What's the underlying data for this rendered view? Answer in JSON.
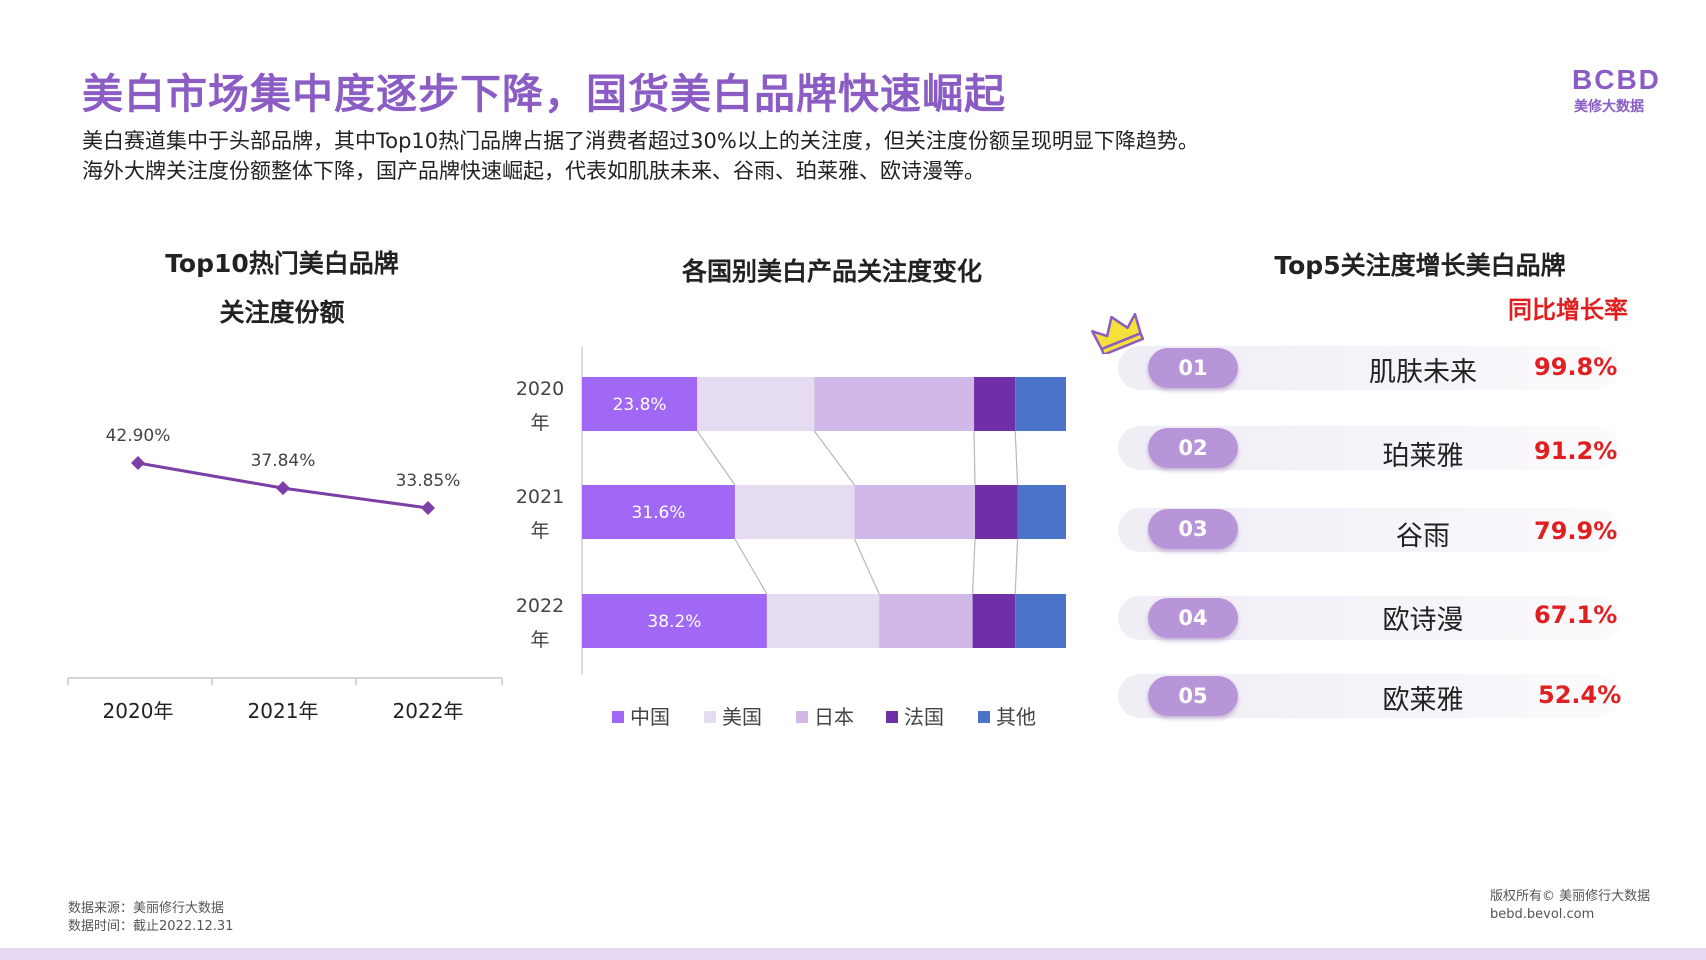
{
  "header": {
    "title": "美白市场集中度逐步下降，国货美白品牌快速崛起",
    "desc_line1": "美白赛道集中于头部品牌，其中Top10热门品牌占据了消费者超过30%以上的关注度，但关注度份额呈现明显下降趋势。",
    "desc_line2": "海外大牌关注度份额整体下降，国产品牌快速崛起，代表如肌肤未来、谷雨、珀莱雅、欧诗漫等。"
  },
  "logo": {
    "mark": "BCBD",
    "text": "美修大数据"
  },
  "left_chart": {
    "title_line1": "Top10热门美白品牌",
    "title_line2": "关注度份额"
  },
  "middle_chart": {
    "title": "各国别美白产品关注度变化"
  },
  "right_panel": {
    "title": "Top5关注度增长美白品牌",
    "growth_label": "同比增长率",
    "items": [
      {
        "rank": "01",
        "brand": "肌肤未来",
        "rate": "99.8%"
      },
      {
        "rank": "02",
        "brand": "珀莱雅",
        "rate": "91.2%"
      },
      {
        "rank": "03",
        "brand": "谷雨",
        "rate": "79.9%"
      },
      {
        "rank": "04",
        "brand": "欧诗漫",
        "rate": "67.1%"
      },
      {
        "rank": "05",
        "brand": "欧莱雅",
        "rate": "52.4%"
      }
    ]
  },
  "chart_data": [
    {
      "type": "line",
      "title": "Top10热门美白品牌 关注度份额",
      "categories": [
        "2020年",
        "2021年",
        "2022年"
      ],
      "values": [
        42.9,
        37.84,
        33.85
      ],
      "data_labels": [
        "42.90%",
        "37.84%",
        "33.85%"
      ],
      "ylim": [
        0,
        60
      ],
      "grid": false,
      "color": "#7b3fa6"
    },
    {
      "type": "bar",
      "orientation": "horizontal",
      "stacked": true,
      "normalized": true,
      "title": "各国别美白产品关注度变化",
      "categories": [
        "2020\n年",
        "2021\n年",
        "2022\n年"
      ],
      "series": [
        {
          "name": "中国",
          "values": [
            23.8,
            31.6,
            38.2
          ],
          "color": "#a168f5",
          "labels": [
            "23.8%",
            "31.6%",
            "38.2%"
          ]
        },
        {
          "name": "美国",
          "values": [
            24.2,
            24.7,
            23.2
          ],
          "color": "#e6dcf2"
        },
        {
          "name": "日本",
          "values": [
            33.0,
            24.9,
            19.3
          ],
          "color": "#d0b8e8"
        },
        {
          "name": "法国",
          "values": [
            8.5,
            8.8,
            8.8
          ],
          "color": "#6f2fa6"
        },
        {
          "name": "其他",
          "values": [
            10.5,
            10.0,
            10.5
          ],
          "color": "#4b74c8"
        }
      ],
      "legend": "bottom",
      "grid": false
    }
  ]
}
